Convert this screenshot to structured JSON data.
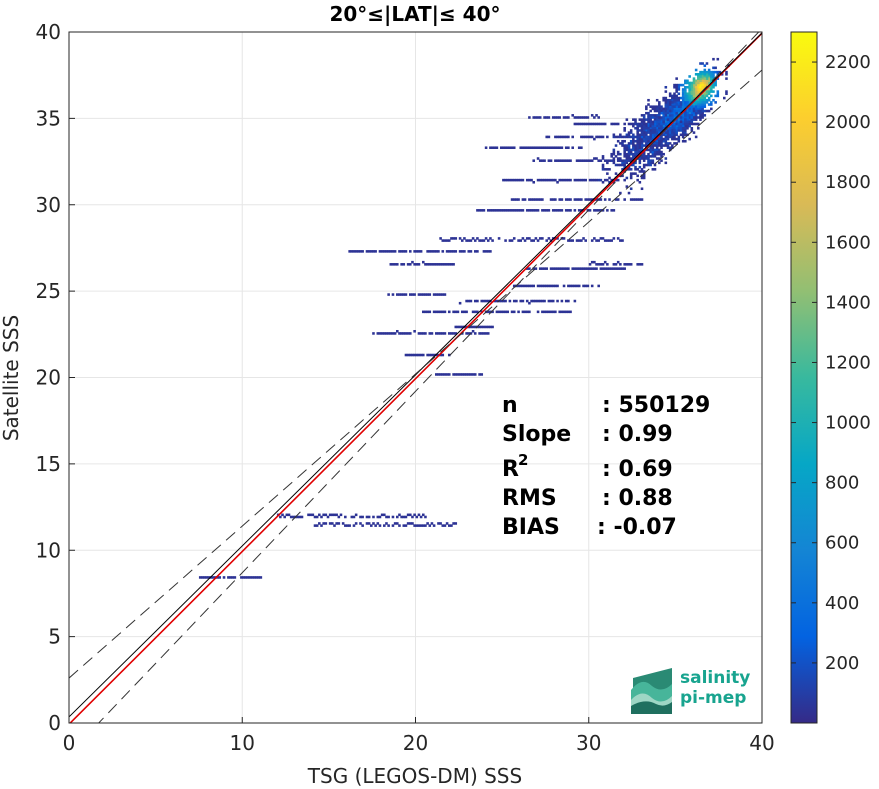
{
  "chart_data": {
    "type": "heatmap",
    "title": "20°≤|LAT|≤ 40°",
    "xlabel": "TSG (LEGOS-DM) SSS",
    "ylabel": "Satellite SSS",
    "xlim": [
      0,
      40
    ],
    "ylim": [
      0,
      40
    ],
    "xticks": [
      "0",
      "10",
      "20",
      "30",
      "40"
    ],
    "yticks": [
      "0",
      "5",
      "10",
      "15",
      "20",
      "25",
      "30",
      "35",
      "40"
    ],
    "grid": true,
    "colorbar": {
      "range": [
        0,
        2300
      ],
      "ticks": [
        "200",
        "400",
        "600",
        "800",
        "1000",
        "1200",
        "1400",
        "1600",
        "1800",
        "2000",
        "2200"
      ],
      "colormap": "parula"
    },
    "lines": [
      {
        "kind": "regression",
        "color": "#e00000",
        "slope": 1.0,
        "intercept": -0.07
      },
      {
        "kind": "identity",
        "color": "#000000",
        "slope": 0.99,
        "intercept": 0.35
      },
      {
        "kind": "upper-bound",
        "color": "#333333",
        "dash": true,
        "slope": 0.88,
        "intercept": 2.6
      },
      {
        "kind": "lower-bound",
        "color": "#333333",
        "dash": true,
        "slope": 1.05,
        "intercept": -1.8
      }
    ],
    "density": {
      "core": {
        "x": 36.4,
        "y": 36.8,
        "peak": 2300
      },
      "clusters": [
        {
          "x": 35.5,
          "y": 35.5,
          "sx": 1.4,
          "sy": 1.6,
          "n": 1600
        },
        {
          "x": 33.5,
          "y": 33.8,
          "sx": 1.8,
          "sy": 2.0,
          "n": 900
        },
        {
          "x": 36.5,
          "y": 36.8,
          "sx": 0.6,
          "sy": 0.7,
          "n": 700
        }
      ],
      "streaks": [
        {
          "x0": 12.0,
          "x1": 20.6,
          "y": 12.0
        },
        {
          "x0": 14.0,
          "x1": 22.3,
          "y": 11.5
        },
        {
          "x0": 7.5,
          "x1": 11.0,
          "y": 8.4
        },
        {
          "x0": 20.4,
          "x1": 29.0,
          "y": 23.8
        },
        {
          "x0": 17.6,
          "x1": 24.5,
          "y": 22.6
        },
        {
          "x0": 22.6,
          "x1": 29.4,
          "y": 24.4
        },
        {
          "x0": 18.5,
          "x1": 22.2,
          "y": 26.6
        },
        {
          "x0": 16.2,
          "x1": 24.4,
          "y": 27.3
        },
        {
          "x0": 21.4,
          "x1": 32.0,
          "y": 28.0
        },
        {
          "x0": 25.6,
          "x1": 33.2,
          "y": 30.3
        },
        {
          "x0": 23.5,
          "x1": 31.4,
          "y": 29.7
        },
        {
          "x0": 24.8,
          "x1": 31.6,
          "y": 31.4
        },
        {
          "x0": 26.8,
          "x1": 33.0,
          "y": 32.6
        },
        {
          "x0": 24.1,
          "x1": 29.7,
          "y": 33.3
        },
        {
          "x0": 27.6,
          "x1": 34.2,
          "y": 33.9
        },
        {
          "x0": 29.2,
          "x1": 35.6,
          "y": 34.7
        },
        {
          "x0": 26.6,
          "x1": 30.6,
          "y": 35.1
        },
        {
          "x0": 18.4,
          "x1": 21.7,
          "y": 24.8
        },
        {
          "x0": 19.4,
          "x1": 22.0,
          "y": 21.3
        },
        {
          "x0": 22.2,
          "x1": 24.5,
          "y": 22.9
        },
        {
          "x0": 26.2,
          "x1": 32.2,
          "y": 26.3
        },
        {
          "x0": 25.6,
          "x1": 30.6,
          "y": 25.3
        },
        {
          "x0": 30.0,
          "x1": 33.0,
          "y": 26.6
        },
        {
          "x0": 21.0,
          "x1": 23.8,
          "y": 20.2
        }
      ]
    }
  },
  "stats": {
    "n_label": "n",
    "n_value": ": 550129",
    "slope_label": "Slope",
    "slope_value": ": 0.99",
    "r2_label": "R",
    "r2_sup": "2",
    "r2_value": ": 0.69",
    "rms_label": "RMS",
    "rms_value": ": 0.88",
    "bias_label": "BIAS",
    "bias_value": ": -0.07"
  },
  "logo": {
    "line1": "salinity",
    "line2": "pi-mep"
  }
}
